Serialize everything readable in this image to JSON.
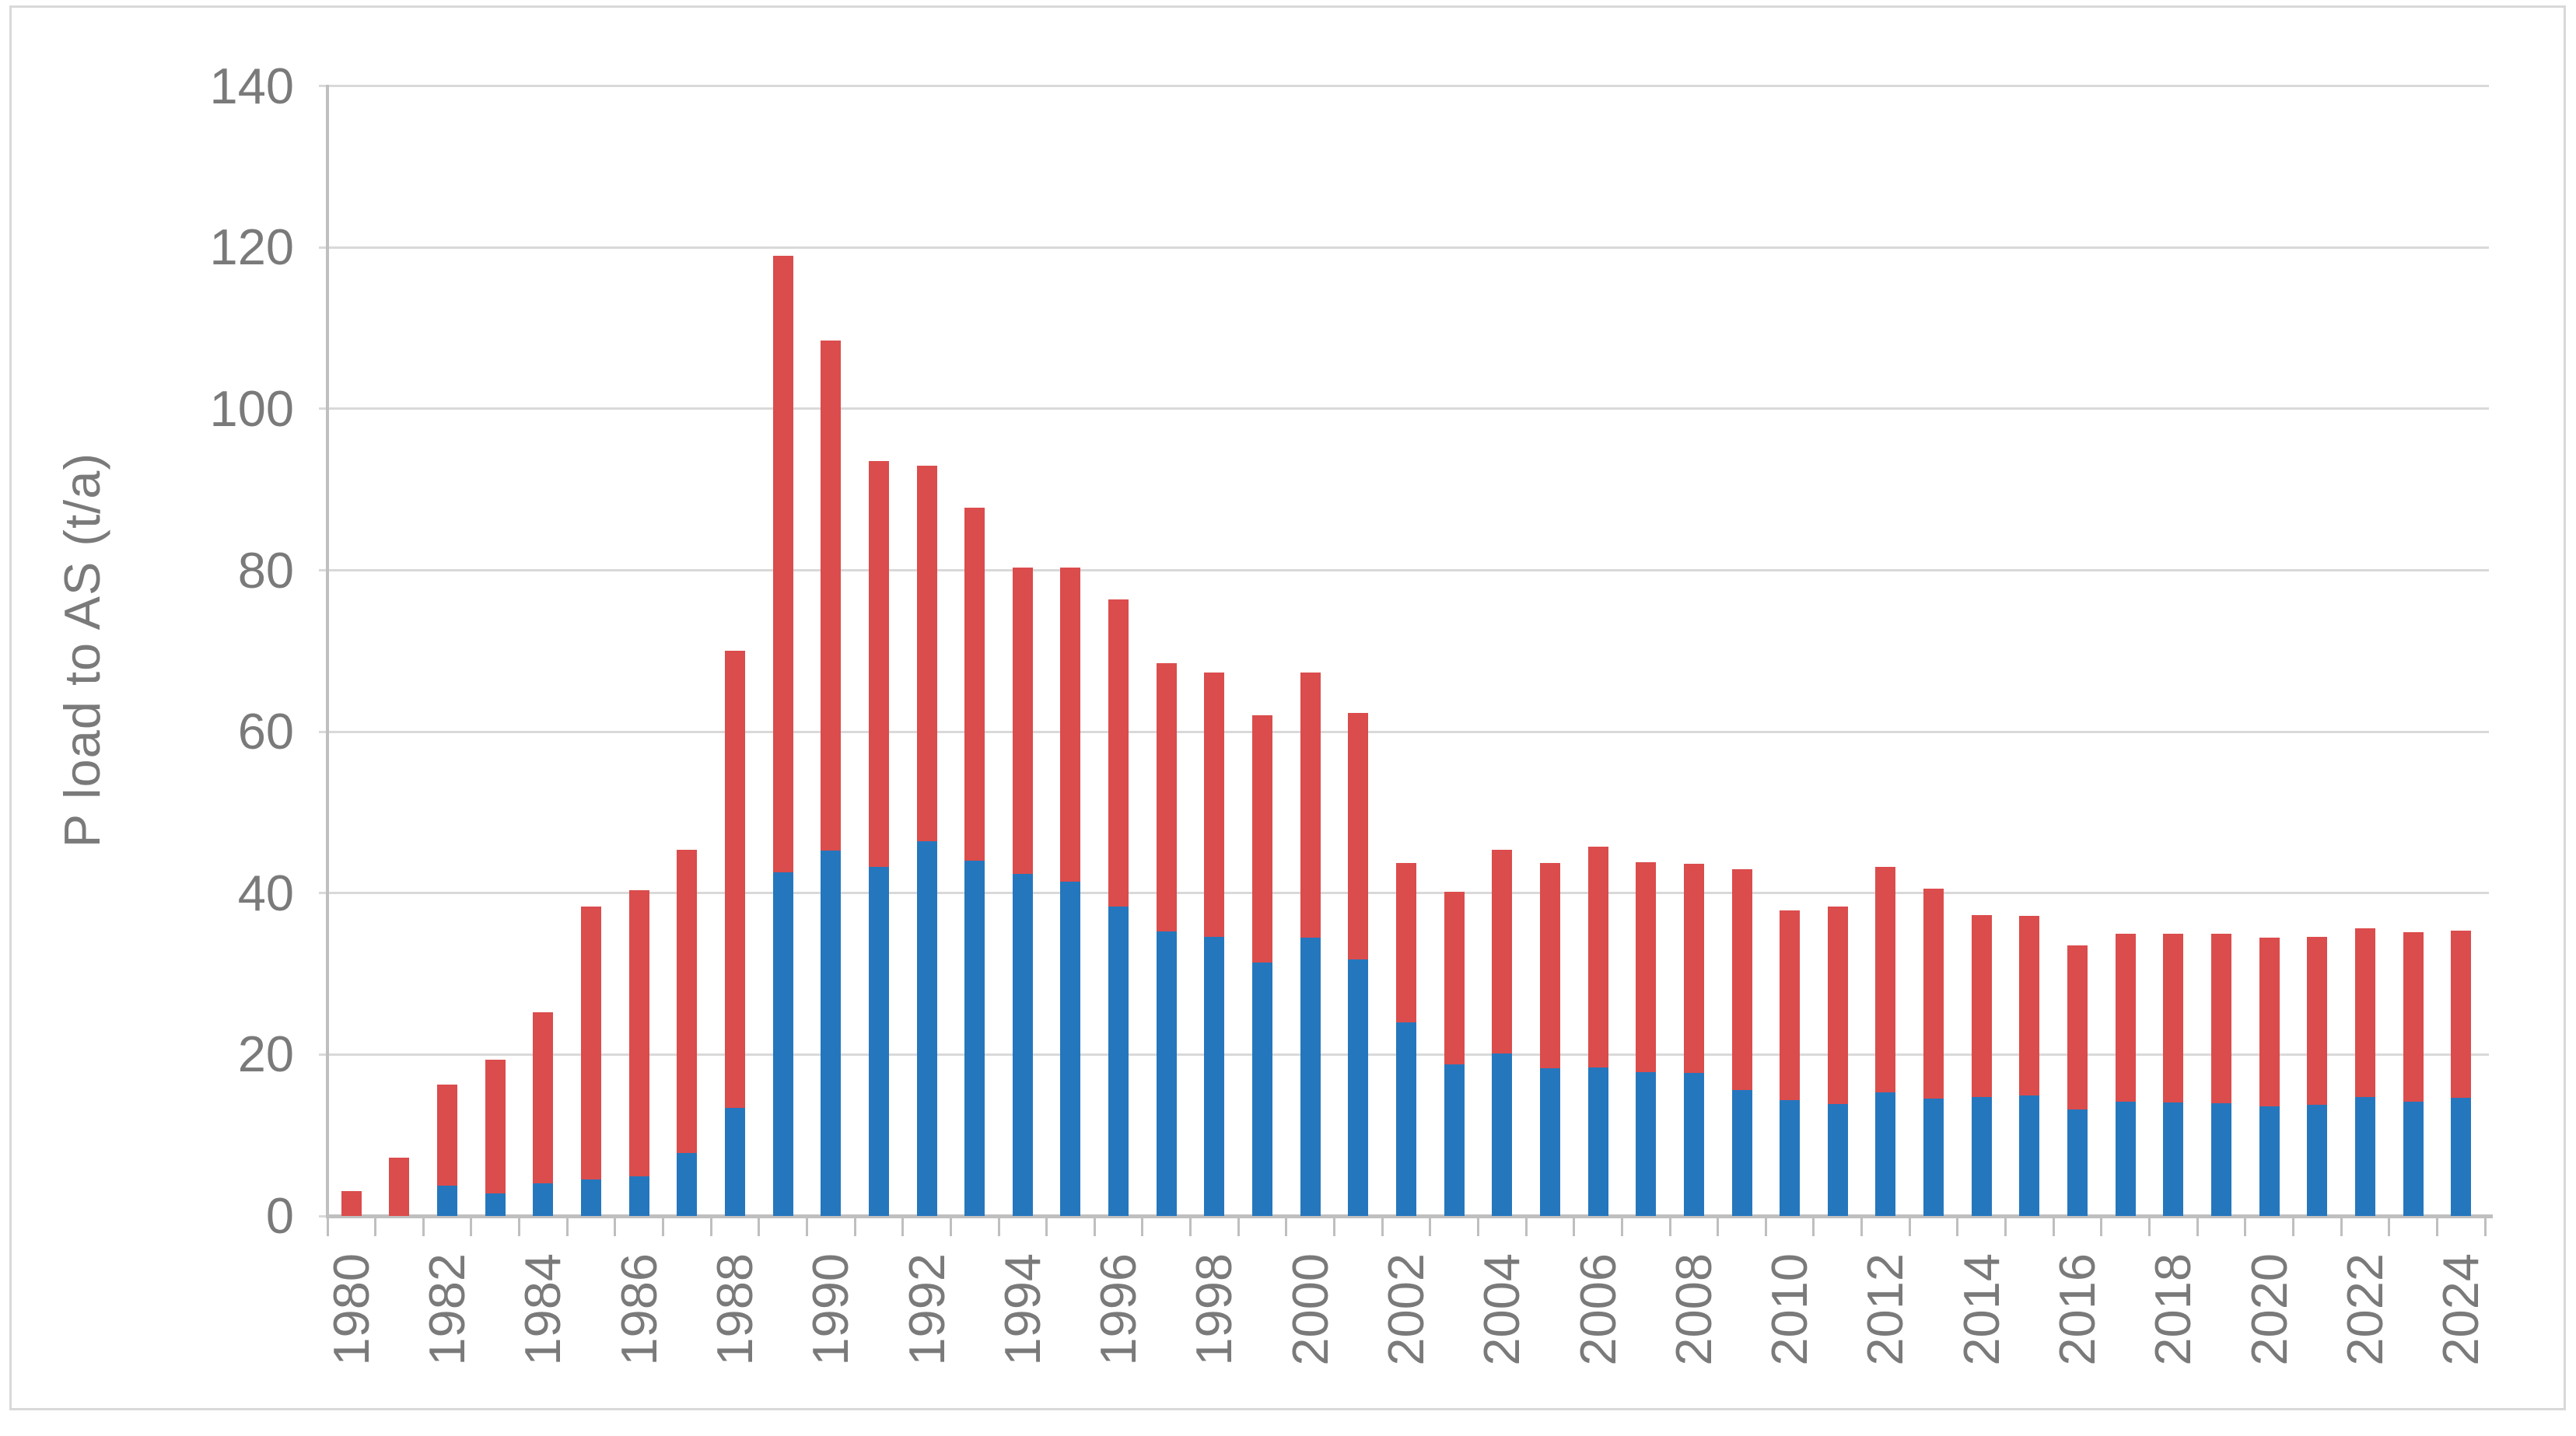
{
  "chart_data": {
    "type": "bar",
    "stacked": true,
    "title": "",
    "xlabel": "",
    "ylabel": "P load to AS (t/a)",
    "ylim": [
      0,
      140
    ],
    "yticks": [
      0,
      20,
      40,
      60,
      80,
      100,
      120,
      140
    ],
    "grid": "horizontal",
    "legend": "none",
    "xtick_label_every": 2,
    "xtick_rotation": "rotated-up-90",
    "categories": [
      1980,
      1981,
      1982,
      1983,
      1984,
      1985,
      1986,
      1987,
      1988,
      1989,
      1990,
      1991,
      1992,
      1993,
      1994,
      1995,
      1996,
      1997,
      1998,
      1999,
      2000,
      2001,
      2002,
      2003,
      2004,
      2005,
      2006,
      2007,
      2008,
      2009,
      2010,
      2011,
      2012,
      2013,
      2014,
      2015,
      2016,
      2017,
      2018,
      2019,
      2020,
      2021,
      2022,
      2023,
      2024
    ],
    "series": [
      {
        "name": "blue",
        "color": "#2577bd",
        "values": [
          0,
          0,
          3.8,
          2.8,
          4.0,
          4.5,
          4.9,
          7.8,
          13.4,
          42.6,
          45.3,
          43.3,
          46.4,
          44.0,
          42.4,
          41.4,
          38.3,
          35.3,
          34.6,
          31.4,
          34.5,
          31.8,
          24.0,
          18.8,
          20.1,
          18.3,
          18.4,
          17.8,
          17.7,
          15.6,
          14.4,
          13.9,
          15.3,
          14.5,
          14.7,
          14.9,
          13.2,
          14.2,
          14.1,
          14.0,
          13.6,
          13.8,
          14.7,
          14.2,
          14.6
        ]
      },
      {
        "name": "red",
        "color": "#db4c4c",
        "values": [
          3.1,
          7.2,
          12.5,
          16.6,
          21.2,
          33.8,
          35.5,
          37.6,
          56.6,
          76.4,
          63.2,
          50.2,
          46.6,
          43.8,
          37.9,
          38.9,
          38.1,
          33.2,
          32.7,
          30.6,
          32.8,
          30.5,
          19.7,
          21.4,
          25.3,
          25.4,
          27.4,
          26.0,
          25.9,
          27.4,
          23.5,
          24.4,
          28.0,
          26.1,
          22.6,
          22.3,
          20.3,
          20.8,
          20.9,
          21.0,
          20.9,
          20.8,
          20.9,
          21.0,
          20.8
        ]
      }
    ]
  },
  "colors": {
    "background": "#ffffff",
    "frame_border": "#d9d9d9",
    "gridline": "#d9d9d9",
    "axis_line": "#bfbfbf",
    "tick": "#bfbfbf",
    "label_text": "#7a7a7a",
    "bar_blue": "#2577bd",
    "bar_red": "#db4c4c"
  }
}
